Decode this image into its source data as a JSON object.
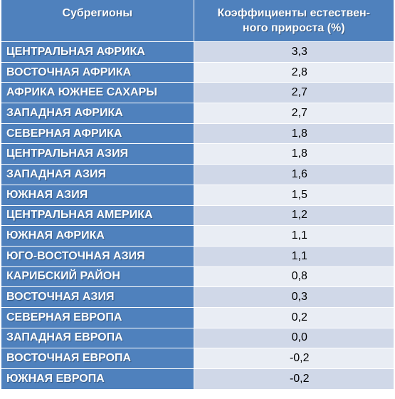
{
  "table": {
    "headers": [
      "Субрегионы",
      "Коэффициенты естествен-ного прироста (%)"
    ],
    "header_lines": [
      "Коэффициенты естествен-",
      "ного прироста (%)"
    ],
    "rows": [
      {
        "region": "ЦЕНТРАЛЬНАЯ АФРИКА",
        "value": "3,3"
      },
      {
        "region": "ВОСТОЧНАЯ АФРИКА",
        "value": "2,8"
      },
      {
        "region": "АФРИКА ЮЖНЕЕ САХАРЫ",
        "value": "2,7"
      },
      {
        "region": "ЗАПАДНАЯ АФРИКА",
        "value": "2,7"
      },
      {
        "region": "СЕВЕРНАЯ АФРИКА",
        "value": "1,8"
      },
      {
        "region": "ЦЕНТРАЛЬНАЯ АЗИЯ",
        "value": "1,8"
      },
      {
        "region": "ЗАПАДНАЯ АЗИЯ",
        "value": "1,6"
      },
      {
        "region": "ЮЖНАЯ АЗИЯ",
        "value": "1,5"
      },
      {
        "region": "ЦЕНТРАЛЬНАЯ АМЕРИКА",
        "value": "1,2"
      },
      {
        "region": "ЮЖНАЯ АФРИКА",
        "value": "1,1"
      },
      {
        "region": "ЮГО-ВОСТОЧНАЯ АЗИЯ",
        "value": "1,1"
      },
      {
        "region": "КАРИБСКИЙ РАЙОН",
        "value": "0,8"
      },
      {
        "region": "ВОСТОЧНАЯ АЗИЯ",
        "value": "0,3"
      },
      {
        "region": "СЕВЕРНАЯ ЕВРОПА",
        "value": "0,2"
      },
      {
        "region": "ЗАПАДНАЯ ЕВРОПА",
        "value": "0,0"
      },
      {
        "region": "ВОСТОЧНАЯ ЕВРОПА",
        "value": "-0,2"
      },
      {
        "region": "ЮЖНАЯ ЕВРОПА",
        "value": "-0,2"
      }
    ]
  },
  "colors": {
    "header_bg": "#4f81bd",
    "row_odd_bg": "#d0d8e8",
    "row_even_bg": "#e9edf4"
  }
}
